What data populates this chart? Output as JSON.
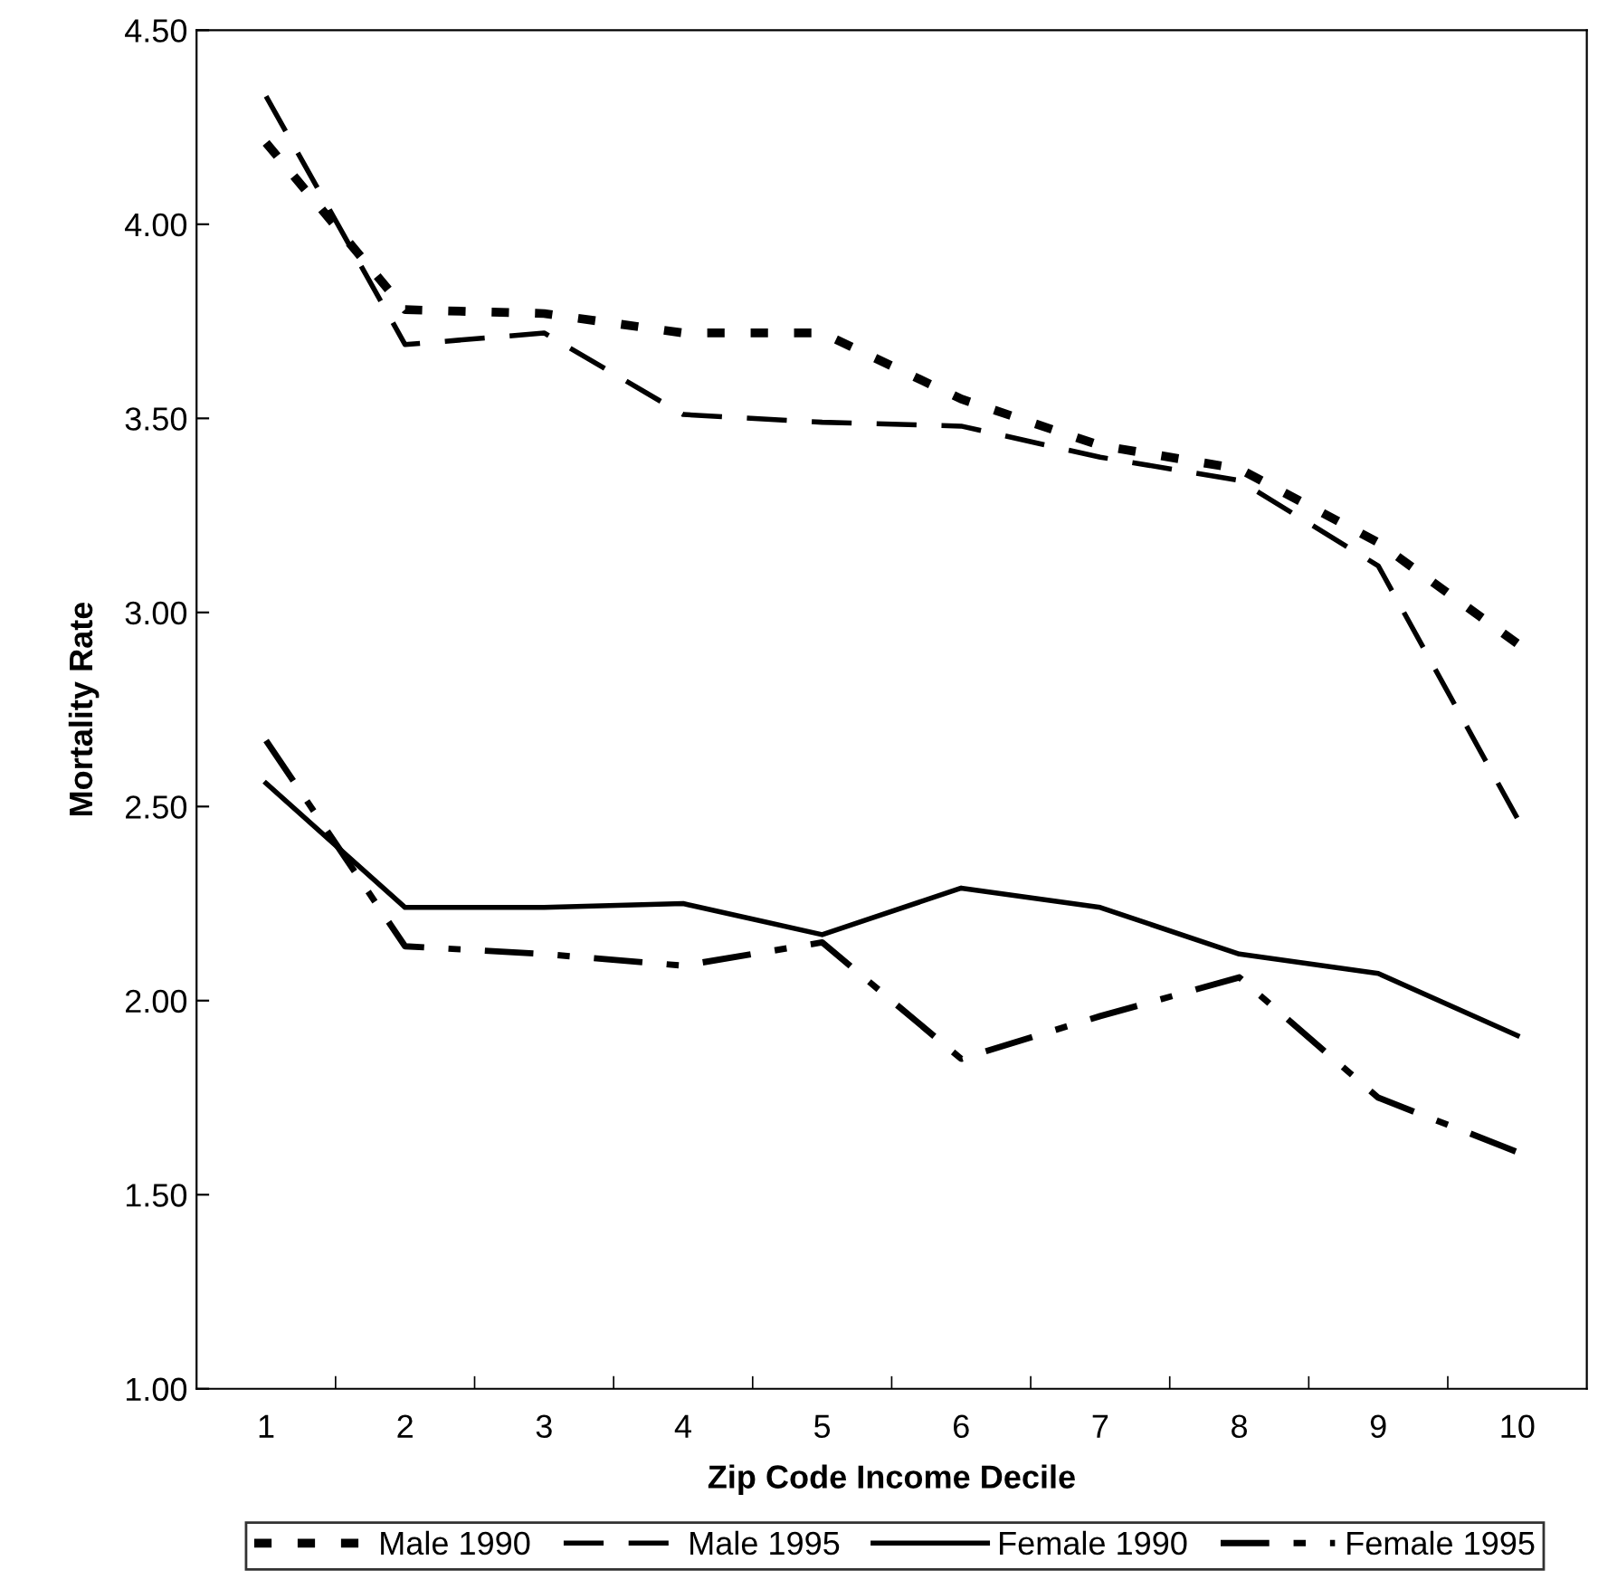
{
  "chart_data": {
    "type": "line",
    "xlabel": "Zip Code Income Decile",
    "ylabel": "Mortality Rate",
    "categories": [
      "1",
      "2",
      "3",
      "4",
      "5",
      "6",
      "7",
      "8",
      "9",
      "10"
    ],
    "ylim": [
      1.0,
      4.5
    ],
    "yticks": [
      {
        "value": 1.0,
        "label": "1.00"
      },
      {
        "value": 1.5,
        "label": "1.50"
      },
      {
        "value": 2.0,
        "label": "2.00"
      },
      {
        "value": 2.5,
        "label": "2.50"
      },
      {
        "value": 3.0,
        "label": "3.00"
      },
      {
        "value": 3.5,
        "label": "3.50"
      },
      {
        "value": 4.0,
        "label": "4.00"
      },
      {
        "value": 4.5,
        "label": "4.50"
      }
    ],
    "grid": false,
    "legend": "bottom",
    "marker": "none",
    "series": [
      {
        "name": "Male 1990",
        "color": "#000000",
        "line_style": "dotted",
        "values": [
          4.21,
          3.78,
          3.77,
          3.72,
          3.72,
          3.55,
          3.43,
          3.37,
          3.18,
          2.92
        ]
      },
      {
        "name": "Male 1995",
        "color": "#000000",
        "line_style": "dashed",
        "values": [
          4.33,
          3.69,
          3.72,
          3.51,
          3.49,
          3.48,
          3.4,
          3.34,
          3.12,
          2.47
        ]
      },
      {
        "name": "Female 1990",
        "color": "#000000",
        "line_style": "solid",
        "values": [
          2.56,
          2.24,
          2.24,
          2.25,
          2.17,
          2.29,
          2.24,
          2.12,
          2.07,
          1.91
        ]
      },
      {
        "name": "Female 1995",
        "color": "#000000",
        "line_style": "dashdot",
        "values": [
          2.67,
          2.14,
          2.12,
          2.09,
          2.15,
          1.85,
          1.96,
          2.06,
          1.75,
          1.61
        ]
      }
    ]
  }
}
